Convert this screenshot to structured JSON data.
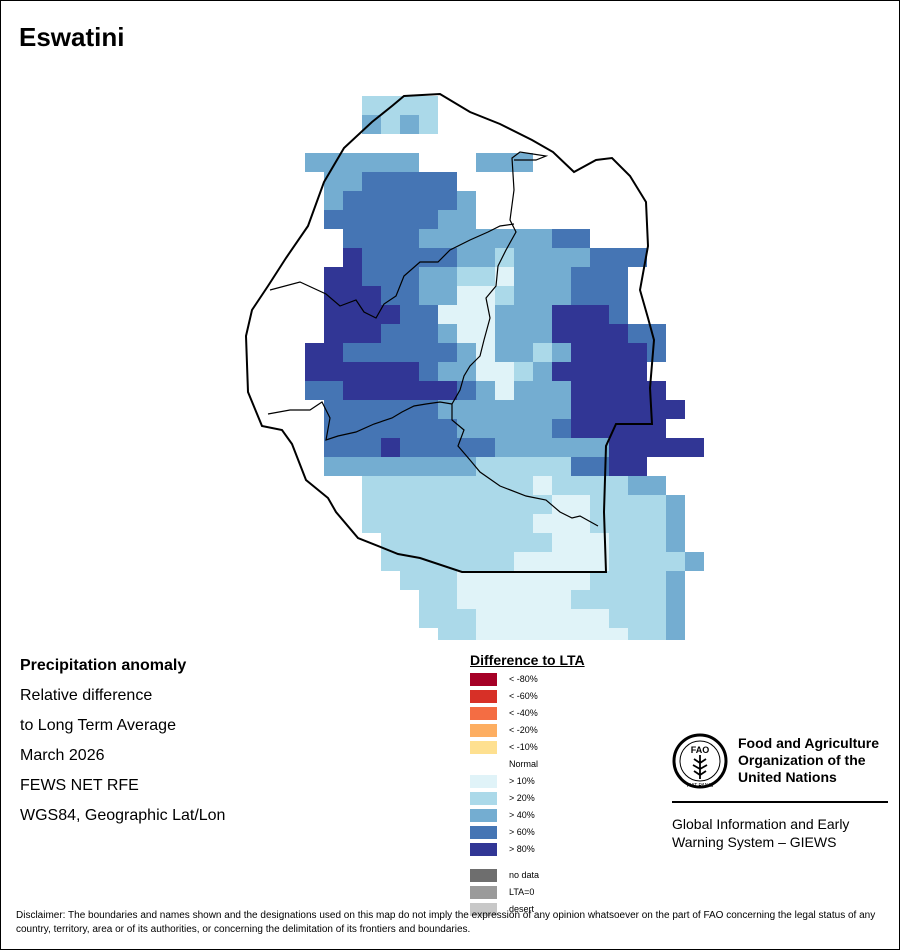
{
  "title": "Eswatini",
  "map_info": {
    "heading": "Precipitation anomaly",
    "line1": "Relative difference",
    "line2": "to Long Term Average",
    "period": "March 2026",
    "source": "FEWS NET RFE",
    "projection": "WGS84, Geographic Lat/Lon"
  },
  "legend": {
    "title": "Difference to LTA",
    "classes": [
      {
        "label": "< -80%",
        "color": "#a50026"
      },
      {
        "label": "< -60%",
        "color": "#d73027"
      },
      {
        "label": "< -40%",
        "color": "#f46d43"
      },
      {
        "label": "< -20%",
        "color": "#fdae61"
      },
      {
        "label": "< -10%",
        "color": "#fee090"
      },
      {
        "label": "Normal",
        "color": "#ffffff"
      },
      {
        "label": "> 10%",
        "color": "#e0f3f8"
      },
      {
        "label": "> 20%",
        "color": "#abd9e9"
      },
      {
        "label": "> 40%",
        "color": "#74add1"
      },
      {
        "label": "> 60%",
        "color": "#4575b4"
      },
      {
        "label": "> 80%",
        "color": "#313695"
      }
    ],
    "special": [
      {
        "label": "no data",
        "color": "#6e6e6e"
      },
      {
        "label": "LTA=0",
        "color": "#9a9a9a"
      },
      {
        "label": "desert",
        "color": "#c8c8c8"
      }
    ]
  },
  "org": {
    "name_line1": "Food and Agriculture",
    "name_line2": "Organization of the",
    "name_line3": "United Nations",
    "system_line1": "Global Information and Early",
    "system_line2": "Warning System – GIEWS",
    "logo_text_top": "FAO",
    "logo_text_bottom": "FIAT PANIS"
  },
  "disclaimer": "Disclaimer: The boundaries and names shown and the designations used on this map do not imply the expression of any opinion whatsoever on the part of FAO concerning the legal status of any country, territory, area or of its authorities, or concerning the delimitation of its frontiers and boundaries.",
  "anomaly_grid": {
    "class_colors": [
      "#ffffff",
      "#e0f3f8",
      "#abd9e9",
      "#74add1",
      "#4575b4",
      "#313695"
    ],
    "rows": [
      "......2222....",
      "......3232...",
      "............",
      "...333333...333",
      "....3344444....",
      "....34444443....",
      "....44444433.......",
      ".....4444333333344....",
      ".....5444443323333444.",
      "....5544433221333444..",
      "....5554433112333444..",
      "....5555441113335554.",
      "....555444311333555544.",
      "...5544444431332355554.",
      "...555555433112355555.",
      "...4455555543133355555.",
      "....4444443333333555555.",
      "....444444433333455555.",
      "....44454444433333355555.",
      "....33333333222224455.",
      "......2222222221222233.",
      "......22222222221122223.",
      "......22222222211122223.",
      ".......2222222221112223.",
      ".......22222221111122223.",
      "........222111111122223..",
      ".........22111111222223..",
      ".........22211111112223..",
      "..........2211111111223..",
      "...........211....12223.."
    ]
  }
}
